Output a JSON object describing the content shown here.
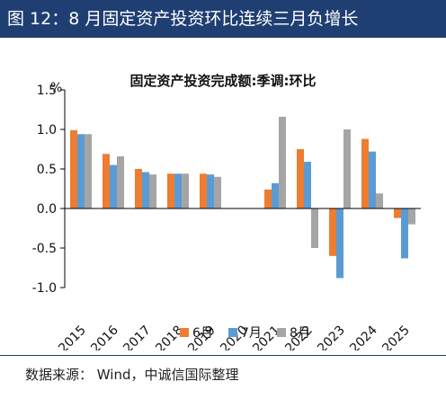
{
  "header": {
    "title": "图 12：8 月固定资产投资环比连续三月负增长"
  },
  "source": {
    "text": "数据来源： Wind，中诚信国际整理"
  },
  "chart_data": {
    "type": "bar",
    "title": "固定资产投资完成额:季调:环比",
    "ylabel": "%",
    "xlabel": "",
    "ylim": [
      -1.0,
      1.5
    ],
    "yticks": [
      "1.5",
      "1.0",
      "0.5",
      "0.0",
      "-0.5",
      "-1.0"
    ],
    "legend_position": "bottom",
    "categories": [
      "2015",
      "2016",
      "2017",
      "2018",
      "2019",
      "2020",
      "2021",
      "2022",
      "2023",
      "2024",
      "2025"
    ],
    "series": [
      {
        "name": "6月",
        "color": "#ed7d31",
        "values": [
          0.99,
          0.69,
          0.5,
          0.44,
          0.44,
          null,
          0.24,
          0.75,
          -0.6,
          0.88,
          -0.12
        ]
      },
      {
        "name": "7月",
        "color": "#5b9bd5",
        "values": [
          0.94,
          0.55,
          0.46,
          0.44,
          0.43,
          null,
          0.32,
          0.59,
          -0.88,
          0.72,
          -0.63
        ]
      },
      {
        "name": "8月",
        "color": "#a5a5a5",
        "values": [
          0.94,
          0.66,
          0.43,
          0.44,
          0.4,
          null,
          1.16,
          -0.5,
          1.0,
          0.19,
          -0.2
        ]
      }
    ]
  }
}
